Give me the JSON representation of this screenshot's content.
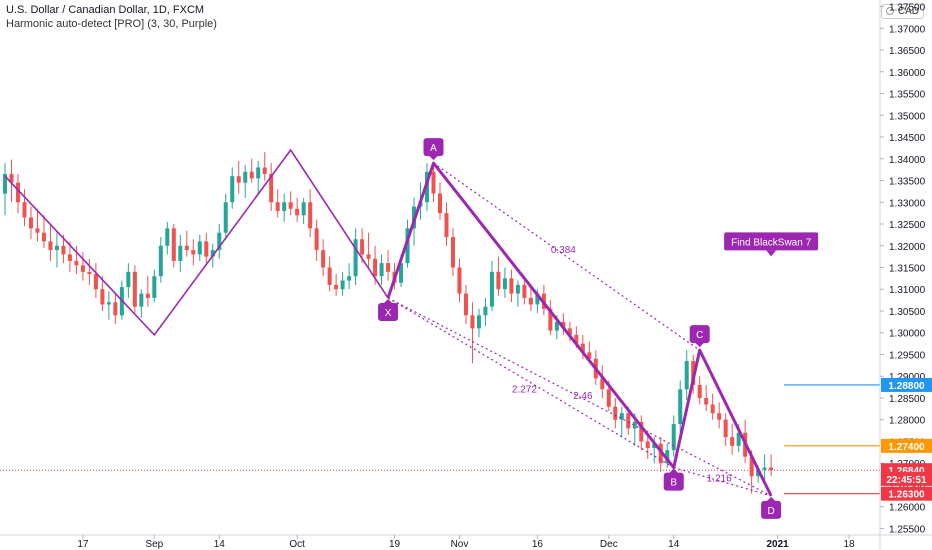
{
  "header": {
    "symbol_line": "U.S. Dollar / Canadian Dollar, 1D, FXCM",
    "indicator_line": "Harmonic auto-detect [PRO] (3, 30, Purple)",
    "currency_badge": "CAD"
  },
  "colors": {
    "up": "#26a69a",
    "down": "#ef5350",
    "pattern": "#9c27b0",
    "blue_level": "#2196f3",
    "orange_level": "#ff9800",
    "red_level": "#f23645"
  },
  "chart_data": {
    "type": "candlestick",
    "ylim": [
      1.2535,
      1.3765
    ],
    "y_ticks": [
      "1.37500",
      "1.37000",
      "1.36500",
      "1.36000",
      "1.35500",
      "1.35000",
      "1.34500",
      "1.34000",
      "1.33500",
      "1.33000",
      "1.32500",
      "1.32000",
      "1.31500",
      "1.31000",
      "1.30500",
      "1.30000",
      "1.29500",
      "1.29000",
      "1.28500",
      "1.28000",
      "1.27500",
      "1.27000",
      "1.26500",
      "1.26000",
      "1.25500"
    ],
    "x_ticks": [
      {
        "label": "17",
        "t": 12
      },
      {
        "label": "Sep",
        "t": 23
      },
      {
        "label": "14",
        "t": 33
      },
      {
        "label": "Oct",
        "t": 45
      },
      {
        "label": "19",
        "t": 60
      },
      {
        "label": "Nov",
        "t": 70
      },
      {
        "label": "16",
        "t": 82
      },
      {
        "label": "Dec",
        "t": 93
      },
      {
        "label": "14",
        "t": 103
      },
      {
        "label": "2021",
        "t": 119
      },
      {
        "label": "18",
        "t": 130
      }
    ],
    "t_range": [
      0,
      134
    ],
    "candles": [
      [
        1.332,
        1.339,
        1.327,
        1.3365
      ],
      [
        1.3365,
        1.3398,
        1.33,
        1.3345
      ],
      [
        1.3345,
        1.3365,
        1.3275,
        1.33
      ],
      [
        1.33,
        1.333,
        1.3245,
        1.3265
      ],
      [
        1.3265,
        1.329,
        1.3215,
        1.324
      ],
      [
        1.324,
        1.3285,
        1.321,
        1.323
      ],
      [
        1.323,
        1.327,
        1.3195,
        1.321
      ],
      [
        1.321,
        1.325,
        1.3165,
        1.319
      ],
      [
        1.319,
        1.323,
        1.315,
        1.32
      ],
      [
        1.32,
        1.3225,
        1.316,
        1.318
      ],
      [
        1.318,
        1.321,
        1.314,
        1.3165
      ],
      [
        1.3165,
        1.32,
        1.3135,
        1.3155
      ],
      [
        1.3155,
        1.3185,
        1.312,
        1.314
      ],
      [
        1.314,
        1.317,
        1.311,
        1.3135
      ],
      [
        1.3135,
        1.316,
        1.308,
        1.31
      ],
      [
        1.31,
        1.313,
        1.305,
        1.3065
      ],
      [
        1.3065,
        1.3095,
        1.303,
        1.307
      ],
      [
        1.307,
        1.309,
        1.302,
        1.304
      ],
      [
        1.304,
        1.312,
        1.303,
        1.3105
      ],
      [
        1.3105,
        1.316,
        1.308,
        1.314
      ],
      [
        1.314,
        1.3155,
        1.3045,
        1.306
      ],
      [
        1.306,
        1.31,
        1.3035,
        1.309
      ],
      [
        1.309,
        1.313,
        1.306,
        1.308
      ],
      [
        1.308,
        1.3145,
        1.307,
        1.313
      ],
      [
        1.313,
        1.322,
        1.3115,
        1.32
      ],
      [
        1.32,
        1.3255,
        1.318,
        1.324
      ],
      [
        1.324,
        1.325,
        1.315,
        1.3165
      ],
      [
        1.3165,
        1.3225,
        1.314,
        1.32
      ],
      [
        1.32,
        1.3235,
        1.3175,
        1.319
      ],
      [
        1.319,
        1.3215,
        1.3155,
        1.318
      ],
      [
        1.318,
        1.3225,
        1.3165,
        1.321
      ],
      [
        1.321,
        1.323,
        1.316,
        1.3175
      ],
      [
        1.3175,
        1.3205,
        1.315,
        1.319
      ],
      [
        1.319,
        1.325,
        1.317,
        1.323
      ],
      [
        1.323,
        1.332,
        1.3215,
        1.33
      ],
      [
        1.33,
        1.338,
        1.3285,
        1.336
      ],
      [
        1.336,
        1.3395,
        1.332,
        1.3345
      ],
      [
        1.3345,
        1.3385,
        1.331,
        1.337
      ],
      [
        1.337,
        1.34,
        1.3345,
        1.3355
      ],
      [
        1.3355,
        1.3395,
        1.332,
        1.338
      ],
      [
        1.338,
        1.3415,
        1.335,
        1.3365
      ],
      [
        1.3365,
        1.339,
        1.328,
        1.33
      ],
      [
        1.33,
        1.333,
        1.3265,
        1.328
      ],
      [
        1.328,
        1.332,
        1.3255,
        1.33
      ],
      [
        1.33,
        1.3325,
        1.327,
        1.3285
      ],
      [
        1.3285,
        1.331,
        1.3255,
        1.327
      ],
      [
        1.327,
        1.331,
        1.325,
        1.33
      ],
      [
        1.33,
        1.333,
        1.322,
        1.324
      ],
      [
        1.324,
        1.326,
        1.3165,
        1.319
      ],
      [
        1.319,
        1.3215,
        1.313,
        1.315
      ],
      [
        1.315,
        1.3175,
        1.3095,
        1.311
      ],
      [
        1.311,
        1.3135,
        1.3085,
        1.31
      ],
      [
        1.31,
        1.314,
        1.3085,
        1.312
      ],
      [
        1.312,
        1.316,
        1.31,
        1.313
      ],
      [
        1.313,
        1.324,
        1.311,
        1.3215
      ],
      [
        1.3215,
        1.324,
        1.316,
        1.318
      ],
      [
        1.318,
        1.323,
        1.315,
        1.317
      ],
      [
        1.317,
        1.32,
        1.311,
        1.313
      ],
      [
        1.313,
        1.318,
        1.311,
        1.316
      ],
      [
        1.316,
        1.319,
        1.312,
        1.314
      ],
      [
        1.314,
        1.316,
        1.31,
        1.3115
      ],
      [
        1.3115,
        1.318,
        1.3105,
        1.316
      ],
      [
        1.316,
        1.326,
        1.315,
        1.324
      ],
      [
        1.324,
        1.331,
        1.32,
        1.329
      ],
      [
        1.329,
        1.3345,
        1.326,
        1.33
      ],
      [
        1.33,
        1.339,
        1.328,
        1.337
      ],
      [
        1.337,
        1.3385,
        1.33,
        1.332
      ],
      [
        1.332,
        1.3345,
        1.326,
        1.3275
      ],
      [
        1.3275,
        1.33,
        1.32,
        1.322
      ],
      [
        1.322,
        1.324,
        1.313,
        1.315
      ],
      [
        1.315,
        1.317,
        1.307,
        1.309
      ],
      [
        1.309,
        1.311,
        1.302,
        1.304
      ],
      [
        1.304,
        1.307,
        1.293,
        1.301
      ],
      [
        1.301,
        1.3055,
        1.299,
        1.304
      ],
      [
        1.304,
        1.308,
        1.3015,
        1.306
      ],
      [
        1.306,
        1.3165,
        1.305,
        1.314
      ],
      [
        1.314,
        1.3175,
        1.3085,
        1.31
      ],
      [
        1.31,
        1.315,
        1.308,
        1.3125
      ],
      [
        1.3125,
        1.3145,
        1.307,
        1.309
      ],
      [
        1.309,
        1.312,
        1.306,
        1.311
      ],
      [
        1.311,
        1.313,
        1.3065,
        1.308
      ],
      [
        1.308,
        1.3105,
        1.305,
        1.3065
      ],
      [
        1.3065,
        1.31,
        1.3045,
        1.309
      ],
      [
        1.309,
        1.311,
        1.304,
        1.3055
      ],
      [
        1.3055,
        1.3075,
        1.2995,
        1.3005
      ],
      [
        1.3005,
        1.304,
        1.2985,
        1.3025
      ],
      [
        1.3025,
        1.3045,
        1.2995,
        1.301
      ],
      [
        1.301,
        1.3025,
        1.298,
        1.2995
      ],
      [
        1.2995,
        1.3015,
        1.2965,
        1.2975
      ],
      [
        1.2975,
        1.2995,
        1.294,
        1.2955
      ],
      [
        1.2955,
        1.298,
        1.293,
        1.294
      ],
      [
        1.294,
        1.296,
        1.288,
        1.2895
      ],
      [
        1.2895,
        1.2925,
        1.285,
        1.287
      ],
      [
        1.287,
        1.289,
        1.282,
        1.283
      ],
      [
        1.283,
        1.285,
        1.278,
        1.28
      ],
      [
        1.28,
        1.283,
        1.276,
        1.2815
      ],
      [
        1.2815,
        1.283,
        1.2765,
        1.278
      ],
      [
        1.278,
        1.2815,
        1.274,
        1.2795
      ],
      [
        1.2795,
        1.281,
        1.273,
        1.275
      ],
      [
        1.275,
        1.2775,
        1.271,
        1.2735
      ],
      [
        1.2735,
        1.276,
        1.27,
        1.2745
      ],
      [
        1.2745,
        1.276,
        1.268,
        1.27
      ],
      [
        1.27,
        1.2745,
        1.269,
        1.273
      ],
      [
        1.273,
        1.281,
        1.2715,
        1.279
      ],
      [
        1.279,
        1.289,
        1.277,
        1.287
      ],
      [
        1.287,
        1.296,
        1.2845,
        1.2935
      ],
      [
        1.2935,
        1.295,
        1.286,
        1.288
      ],
      [
        1.288,
        1.29,
        1.2835,
        1.285
      ],
      [
        1.285,
        1.288,
        1.282,
        1.2835
      ],
      [
        1.2835,
        1.286,
        1.28,
        1.2815
      ],
      [
        1.2815,
        1.284,
        1.278,
        1.28
      ],
      [
        1.28,
        1.2815,
        1.274,
        1.276
      ],
      [
        1.276,
        1.279,
        1.272,
        1.274
      ],
      [
        1.274,
        1.279,
        1.2725,
        1.277
      ],
      [
        1.277,
        1.28,
        1.27,
        1.2715
      ],
      [
        1.2715,
        1.273,
        1.263,
        1.267
      ],
      [
        1.267,
        1.2695,
        1.2655,
        1.2685
      ],
      [
        1.2685,
        1.272,
        1.266,
        1.269
      ],
      [
        1.269,
        1.272,
        1.267,
        1.2684
      ]
    ],
    "pattern": {
      "left_zigzag": [
        [
          0,
          1.336
        ],
        [
          23,
          1.2995
        ],
        [
          44,
          1.342
        ],
        [
          59,
          1.308
        ]
      ],
      "points": [
        {
          "label": "X",
          "t": 59,
          "price": 1.308
        },
        {
          "label": "A",
          "t": 66,
          "price": 1.339
        },
        {
          "label": "B",
          "t": 103,
          "price": 1.269
        },
        {
          "label": "C",
          "t": 107,
          "price": 1.296
        },
        {
          "label": "D",
          "t": 118,
          "price": 1.2625
        }
      ],
      "ratios": [
        {
          "text": "0.384",
          "t": 86,
          "price": 1.319
        },
        {
          "text": "2.272",
          "t": 80,
          "price": 1.287
        },
        {
          "text": "2.46",
          "t": 89,
          "price": 1.2855
        },
        {
          "text": "1.216",
          "t": 110,
          "price": 1.2665
        }
      ],
      "callout": {
        "text": "Find BlackSwan 7",
        "t": 118,
        "price": 1.321
      }
    },
    "price_labels": [
      {
        "text": "1.28800",
        "price": 1.288,
        "color": "#2196f3",
        "line_from_t": 120
      },
      {
        "text": "1.27400",
        "price": 1.274,
        "color": "#ff9800",
        "line_from_t": 120
      },
      {
        "text": "1.26840",
        "price": 1.2684,
        "color": "#f23645",
        "line_from_t": null
      },
      {
        "text": "22:45:51",
        "price": 1.2664,
        "color": "#f23645",
        "line_from_t": null
      },
      {
        "text": "1.26300",
        "price": 1.263,
        "color": "#f23645",
        "line_from_t": 120
      }
    ],
    "current_price": 1.2684
  }
}
